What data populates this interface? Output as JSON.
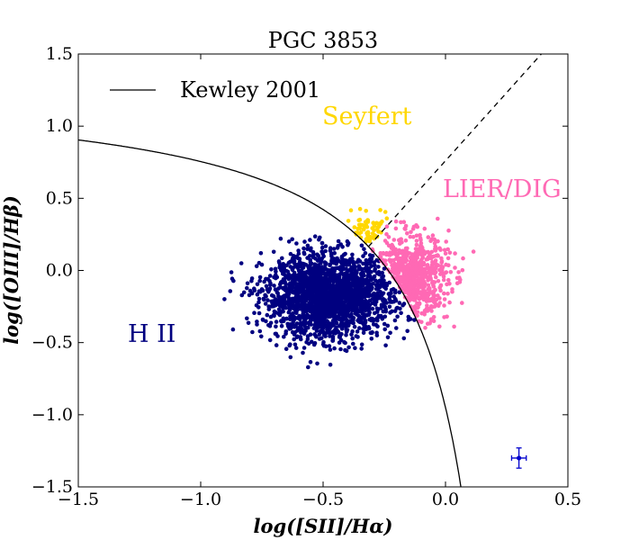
{
  "chart_data": {
    "type": "scatter",
    "title": "PGC 3853",
    "xlabel": "log([SII]/Hα)",
    "ylabel": "log([OIII]/Hβ)",
    "xlim": [
      -1.5,
      0.5
    ],
    "ylim": [
      -1.5,
      1.5
    ],
    "x_ticks": [
      "−1.5",
      "−1.0",
      "−0.5",
      "0.0",
      "0.5"
    ],
    "y_ticks": [
      "1.5",
      "1.0",
      "0.5",
      "0.0",
      "−0.5",
      "−1.0",
      "−1.5"
    ],
    "grid": false,
    "legend": {
      "placement": "top-left",
      "entries": [
        "Kewley 2001"
      ]
    },
    "colors": {
      "hii": "#000080",
      "seyfert": "#ffd700",
      "lier": "#ff69b4",
      "error_bar": "#0000cd"
    },
    "annotations": {
      "hii": "H II",
      "seyfert": "Seyfert",
      "lier": "LIER/DIG"
    },
    "kewley_2001": {
      "formula": "0.72/(x-0.32)+1.30",
      "style": "solid"
    },
    "seyfert_lier_line": {
      "formula": "1.89x+0.76",
      "style": "dashed"
    },
    "clusters": [
      {
        "name": "H II",
        "color": "#000080",
        "count": 2200,
        "center": [
          -0.48,
          -0.18
        ],
        "spread": [
          0.13,
          0.14
        ],
        "x_range": [
          -0.95,
          -0.1
        ],
        "y_range": [
          -1.1,
          0.45
        ]
      },
      {
        "name": "Seyfert",
        "color": "#ffd700",
        "count": 70,
        "center": [
          -0.32,
          0.22
        ],
        "spread": [
          0.06,
          0.08
        ],
        "x_range": [
          -0.42,
          -0.22
        ],
        "y_range": [
          0.05,
          0.45
        ]
      },
      {
        "name": "LIER/DIG",
        "color": "#ff69b4",
        "count": 650,
        "center": [
          -0.15,
          -0.05
        ],
        "spread": [
          0.08,
          0.15
        ],
        "x_range": [
          -0.32,
          0.12
        ],
        "y_range": [
          -0.4,
          0.42
        ]
      }
    ],
    "error_bar": {
      "x": 0.3,
      "y": -1.3,
      "xerr": 0.03,
      "yerr": 0.07
    }
  }
}
